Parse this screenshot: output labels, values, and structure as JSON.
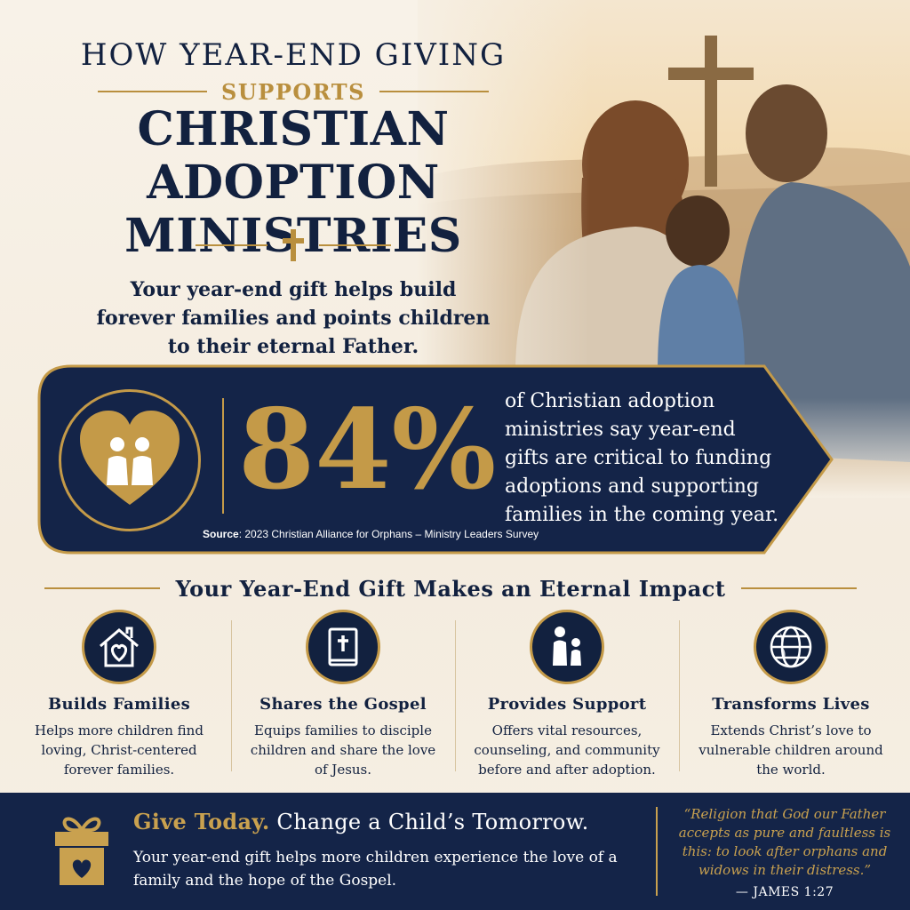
{
  "header": {
    "line1": "HOW YEAR-END GIVING",
    "line2": "SUPPORTS",
    "line3a": "CHRISTIAN ADOPTION",
    "line3b": "MINISTRIES",
    "lead": "Your year-end gift helps build forever families and points children to their eternal Father."
  },
  "stat": {
    "value": "84%",
    "description": "of Christian adoption ministries say year-end gifts are critical to funding adoptions and supporting families in the coming year.",
    "source_label": "Source",
    "source_text": ": 2023 Christian Alliance for Orphans – Ministry Leaders Survey"
  },
  "impact": {
    "title": "Your Year-End Gift Makes an Eternal Impact",
    "cards": [
      {
        "icon": "house-heart-icon",
        "title": "Builds Families",
        "text": "Helps more children find loving, Christ-centered forever families."
      },
      {
        "icon": "bible-icon",
        "title": "Shares the Gospel",
        "text": "Equips families to disciple children and share the love of Jesus."
      },
      {
        "icon": "parent-child-icon",
        "title": "Provides Support",
        "text": "Offers vital resources, counseling, and community before and after adoption."
      },
      {
        "icon": "globe-icon",
        "title": "Transforms Lives",
        "text": "Extends Christ’s love to vulnerable children around the world."
      }
    ]
  },
  "footer": {
    "cta_gold": "Give Today.",
    "cta_rest": "Change a Child’s Tomorrow.",
    "cta_sub": "Your year-end gift helps more children experience the love of a family and the hope of the Gospel.",
    "quote": "“Religion that God our Father accepts as pure and faultless is this: to look after orphans and widows in their distress.”",
    "quote_ref": "— JAMES 1:27"
  },
  "colors": {
    "navy": "#12213f",
    "gold": "#c49a48",
    "cream": "#f6efe3"
  }
}
